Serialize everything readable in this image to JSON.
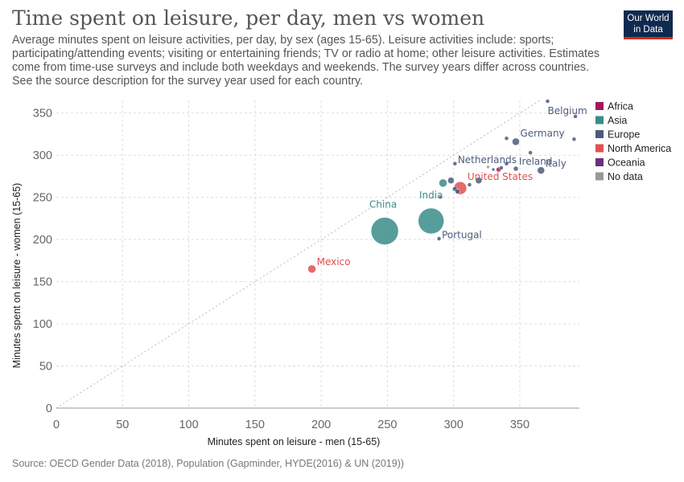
{
  "header": {
    "title": "Time spent on leisure, per day, men vs women",
    "subtitle": "Average minutes spent on leisure activities, per day, by sex (ages 15-65). Leisure activities include: sports; participating/attending events; visiting or entertaining friends; TV or radio at home; other leisure activities. Estimates come from time-use surveys and include both weekdays and weekends. The survey years differ across countries. See the source description for the survey year used for each country."
  },
  "logo": {
    "line1": "Our World",
    "line2": "in Data"
  },
  "footer": {
    "source": "Source: OECD Gender Data (2018), Population (Gapminder, HYDE(2016) & UN (2019))"
  },
  "colors": {
    "Africa": "#a2185b",
    "Asia": "#3a8c8a",
    "Europe": "#4c5a7c",
    "North America": "#e0504f",
    "Oceania": "#6a2f7d",
    "No data": "#999999"
  },
  "chart_data": {
    "type": "scatter",
    "xlabel": "Minutes spent on leisure - men (15-65)",
    "ylabel": "Minutes spent on leisure - women (15-65)",
    "xlim": [
      0,
      395
    ],
    "ylim": [
      0,
      365
    ],
    "xticks": [
      0,
      50,
      100,
      150,
      200,
      250,
      300,
      350
    ],
    "yticks": [
      0,
      50,
      100,
      150,
      200,
      250,
      300,
      350
    ],
    "grid": true,
    "diagonal_reference": true,
    "legend_position": "right",
    "legend": [
      "Africa",
      "Asia",
      "Europe",
      "North America",
      "Oceania",
      "No data"
    ],
    "points": [
      {
        "label": "China",
        "x": 248,
        "y": 210,
        "region": "Asia",
        "size": 17
      },
      {
        "label": "India",
        "x": 283,
        "y": 222,
        "region": "Asia",
        "size": 16
      },
      {
        "label": "Mexico",
        "x": 193,
        "y": 165,
        "region": "North America",
        "size": 5
      },
      {
        "label": "United States",
        "x": 305,
        "y": 261,
        "region": "North America",
        "size": 8
      },
      {
        "label": "Portugal",
        "x": 289,
        "y": 201,
        "region": "Europe",
        "size": 2.5
      },
      {
        "label": "Germany",
        "x": 347,
        "y": 316,
        "region": "Europe",
        "size": 4.5
      },
      {
        "label": "Belgium",
        "x": 371,
        "y": 364,
        "region": "Europe",
        "size": 2.5
      },
      {
        "label": "Netherlands",
        "x": 301,
        "y": 290,
        "region": "Europe",
        "size": 2.5
      },
      {
        "label": "Ireland",
        "x": 347,
        "y": 284,
        "region": "Europe",
        "size": 3
      },
      {
        "label": "Italy",
        "x": 366,
        "y": 282,
        "region": "Europe",
        "size": 4.5
      },
      {
        "label": "",
        "x": 392,
        "y": 346,
        "region": "Europe",
        "size": 2.5
      },
      {
        "label": "",
        "x": 391,
        "y": 319,
        "region": "Europe",
        "size": 2.5
      },
      {
        "label": "",
        "x": 340,
        "y": 320,
        "region": "Europe",
        "size": 2.5
      },
      {
        "label": "",
        "x": 358,
        "y": 303,
        "region": "Europe",
        "size": 2.5
      },
      {
        "label": "",
        "x": 340,
        "y": 290,
        "region": "Europe",
        "size": 2.5
      },
      {
        "label": "",
        "x": 336,
        "y": 285,
        "region": "Europe",
        "size": 2.5
      },
      {
        "label": "",
        "x": 319,
        "y": 270,
        "region": "Europe",
        "size": 4
      },
      {
        "label": "",
        "x": 298,
        "y": 270,
        "region": "Europe",
        "size": 4
      },
      {
        "label": "",
        "x": 301,
        "y": 260,
        "region": "Europe",
        "size": 3
      },
      {
        "label": "",
        "x": 303,
        "y": 257,
        "region": "Europe",
        "size": 3
      },
      {
        "label": "",
        "x": 312,
        "y": 265,
        "region": "Europe",
        "size": 2.5
      },
      {
        "label": "",
        "x": 330,
        "y": 283,
        "region": "Europe",
        "size": 2
      },
      {
        "label": "",
        "x": 290,
        "y": 250,
        "region": "Europe",
        "size": 2
      },
      {
        "label": "",
        "x": 292,
        "y": 267,
        "region": "Asia",
        "size": 5
      },
      {
        "label": "",
        "x": 334,
        "y": 283,
        "region": "Africa",
        "size": 3
      },
      {
        "label": "",
        "x": 326,
        "y": 286,
        "region": "No data",
        "size": 2
      }
    ]
  }
}
